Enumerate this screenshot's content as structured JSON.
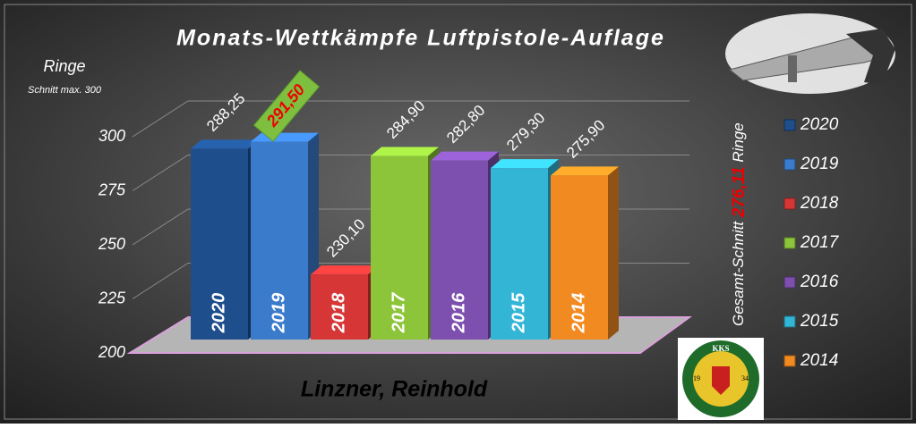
{
  "chart_data": {
    "type": "bar3d",
    "title": "Monats-Wettkämpfe Luftpistole-Auflage",
    "y_label": "Ringe",
    "y_sublabel": "Schnitt max. 300",
    "annotation": {
      "prefix": "Gesamt-Schnitt",
      "value": "276,11",
      "suffix": "Ringe"
    },
    "footer": "Linzner, Reinhold",
    "logo": {
      "top": "KKS",
      "left": "19",
      "right": "34"
    },
    "categories": [
      "2020",
      "2019",
      "2018",
      "2017",
      "2016",
      "2015",
      "2014"
    ],
    "values": [
      288.25,
      291.5,
      230.1,
      284.9,
      282.8,
      279.3,
      275.9
    ],
    "value_labels": [
      "288,25",
      "291,50",
      "230,10",
      "284,90",
      "282,80",
      "279,30",
      "275,90"
    ],
    "colors": [
      "#1f4e8c",
      "#3a7bcc",
      "#d63636",
      "#8cc43a",
      "#7d4fae",
      "#33b6d6",
      "#f28a22"
    ],
    "highlight": 1,
    "ylim": [
      200,
      300
    ],
    "yticks": [
      200,
      225,
      250,
      275,
      300
    ],
    "grid": true,
    "legend": "right"
  }
}
